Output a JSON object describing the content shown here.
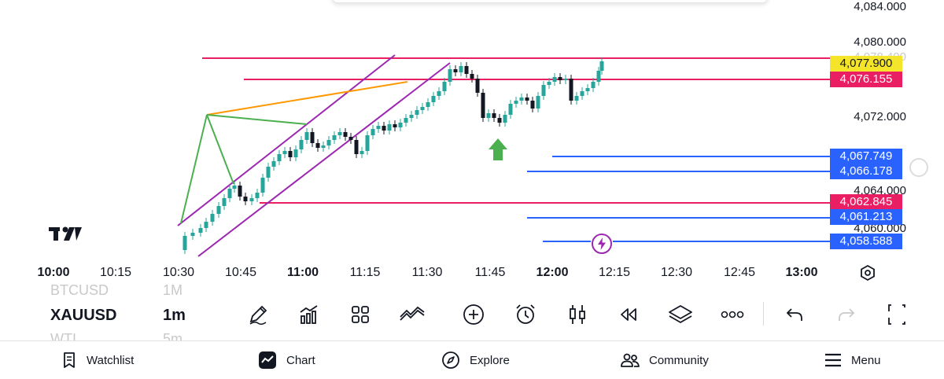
{
  "symbol_list": {
    "above": {
      "symbol": "BTCUSD",
      "timeframe": "1M"
    },
    "current": {
      "symbol": "XAUUSD",
      "timeframe": "1m"
    },
    "below": {
      "symbol": "WTI",
      "timeframe": "5m"
    }
  },
  "price_axis": {
    "labels": [
      "4,084.000",
      "4,080.000",
      "4,072.000",
      "4,064.000",
      "4,060.000"
    ],
    "hidden_label": "4,078.400"
  },
  "price_tags": [
    {
      "label": "4,077.900",
      "price": 4077.9,
      "type": "last-price",
      "bg": "#f5e52a",
      "color": "#131722"
    },
    {
      "label": "4,076.155",
      "price": 4076.155,
      "type": "line",
      "bg": "#e91e63",
      "color": "#ffffff"
    },
    {
      "label": "4,067.749",
      "price": 4067.749,
      "type": "line",
      "bg": "#2962ff",
      "color": "#ffffff"
    },
    {
      "label": "4,066.178",
      "price": 4066.178,
      "type": "line",
      "bg": "#2962ff",
      "color": "#ffffff"
    },
    {
      "label": "4,062.845",
      "price": 4062.845,
      "type": "line",
      "bg": "#e91e63",
      "color": "#ffffff"
    },
    {
      "label": "4,061.213",
      "price": 4061.213,
      "type": "line",
      "bg": "#2962ff",
      "color": "#ffffff"
    },
    {
      "label": "4,058.588",
      "price": 4058.588,
      "type": "line",
      "bg": "#2962ff",
      "color": "#ffffff"
    }
  ],
  "time_axis": [
    "10:00",
    "10:15",
    "10:30",
    "10:45",
    "11:00",
    "11:15",
    "11:30",
    "11:45",
    "12:00",
    "12:15",
    "12:30",
    "12:45",
    "13:00"
  ],
  "time_axis_bold": [
    "10:00",
    "11:00",
    "12:00",
    "13:00"
  ],
  "colors": {
    "up": "#26a69a",
    "down": "#131722",
    "channel": "#9c27b0",
    "pink_line": "#e91e63",
    "blue_line": "#2962ff",
    "orange_line": "#ff9800",
    "green_line": "#4caf50",
    "arrow": "#4caf50"
  },
  "toolbar": {
    "icons": [
      "pencil-icon",
      "indicators-icon",
      "templates-icon",
      "compare-icon",
      "add-icon",
      "alert-icon",
      "candle-type-icon",
      "replay-icon",
      "layers-icon",
      "more-icon",
      "undo-icon",
      "redo-icon",
      "fullscreen-icon"
    ]
  },
  "nav": {
    "watchlist": "Watchlist",
    "chart": "Chart",
    "explore": "Explore",
    "community": "Community",
    "menu": "Menu"
  }
}
